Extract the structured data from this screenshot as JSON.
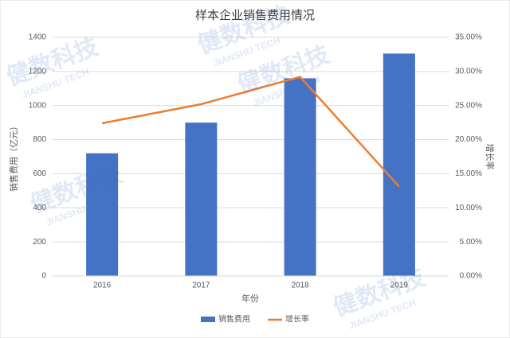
{
  "chart_data": {
    "type": "bar",
    "title": "样本企业销售费用情况",
    "x_label": "年份",
    "y_label": "销售费用（亿元）",
    "y2_label": "增长率",
    "categories": [
      "2016",
      "2017",
      "2018",
      "2019"
    ],
    "series": [
      {
        "name": "销售费用",
        "type": "bar",
        "color": "#4472c4",
        "values": [
          720,
          900,
          1160,
          1305
        ]
      },
      {
        "name": "增长率",
        "type": "line",
        "axis": "y2",
        "color": "#ed7d31",
        "values": [
          22.4,
          25.2,
          29.2,
          13.1
        ]
      }
    ],
    "ylim": [
      0,
      1400
    ],
    "yticks": [
      0,
      200,
      400,
      600,
      800,
      1000,
      1200,
      1400
    ],
    "y2lim": [
      0,
      35
    ],
    "y2ticks": [
      {
        "value": 0,
        "label": "0.00%"
      },
      {
        "value": 5,
        "label": "5.00%"
      },
      {
        "value": 10,
        "label": "10.00%"
      },
      {
        "value": 15,
        "label": "15.00%"
      },
      {
        "value": 20,
        "label": "20.00%"
      },
      {
        "value": 25,
        "label": "25.00%"
      },
      {
        "value": 30,
        "label": "30.00%"
      },
      {
        "value": 35,
        "label": "35.00%"
      }
    ],
    "grid": true,
    "legend": "bottom",
    "watermark": {
      "name": "健数科技",
      "sub": "JIANSHU TECH"
    }
  }
}
